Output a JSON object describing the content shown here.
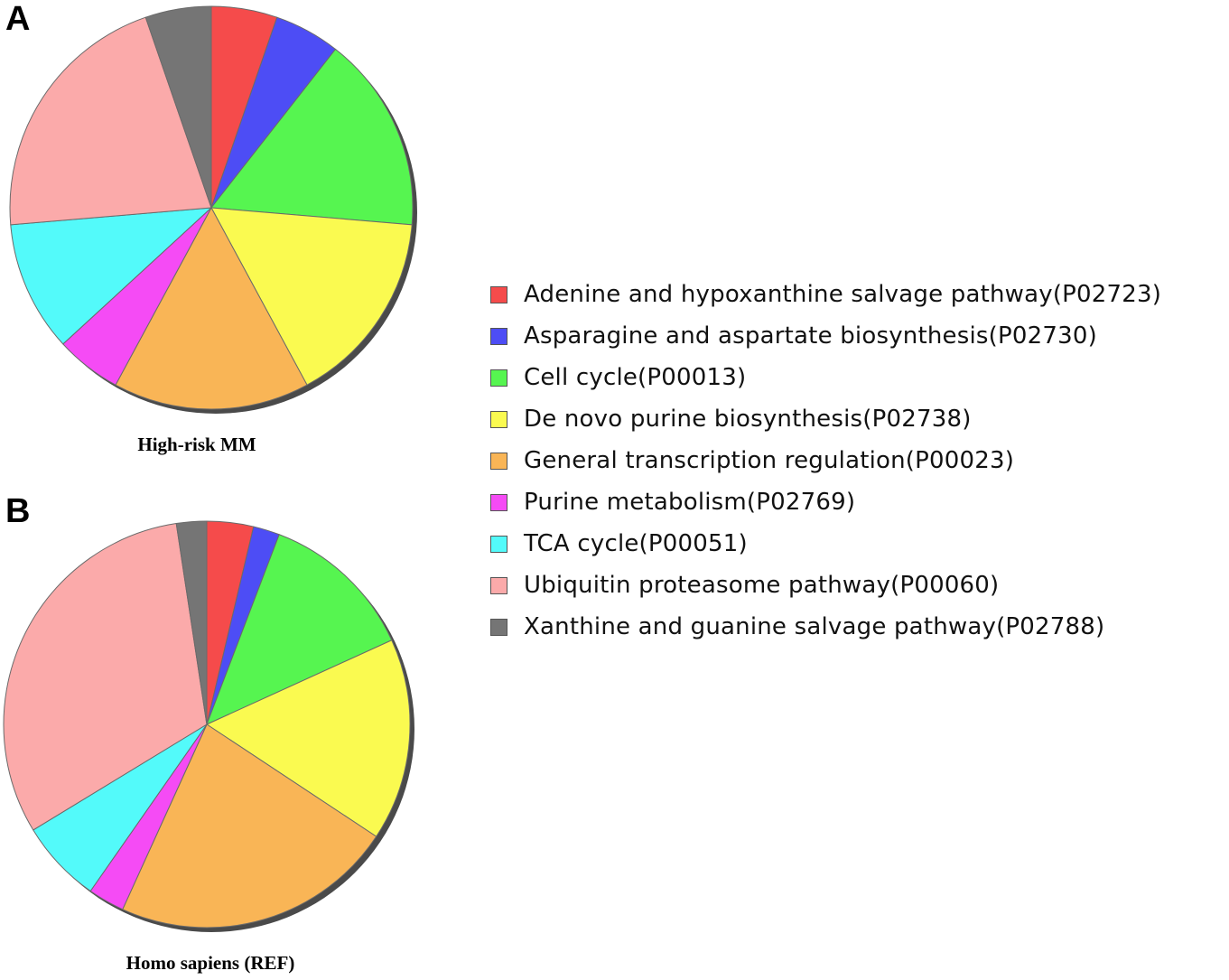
{
  "panels": {
    "a_letter": "A",
    "b_letter": "B"
  },
  "legend": {
    "items": [
      {
        "label": "Adenine and hypoxanthine salvage pathway(P02723)",
        "color": "#f54b4b"
      },
      {
        "label": "Asparagine and aspartate biosynthesis(P02730)",
        "color": "#4d4df5"
      },
      {
        "label": "Cell cycle(P00013)",
        "color": "#56f550"
      },
      {
        "label": "De novo purine biosynthesis(P02738)",
        "color": "#fafa50"
      },
      {
        "label": "General transcription regulation(P00023)",
        "color": "#f9b556"
      },
      {
        "label": "Purine metabolism(P02769)",
        "color": "#f54bf5"
      },
      {
        "label": "TCA cycle(P00051)",
        "color": "#53fafa"
      },
      {
        "label": "Ubiquitin proteasome pathway(P00060)",
        "color": "#fbaaaa"
      },
      {
        "label": "Xanthine and guanine salvage pathway(P02788)",
        "color": "#757575"
      }
    ]
  },
  "chart_data": [
    {
      "type": "pie",
      "caption": "High-risk MM",
      "categories": [
        "Adenine and hypoxanthine salvage pathway(P02723)",
        "Asparagine and aspartate biosynthesis(P02730)",
        "Cell cycle(P00013)",
        "De novo purine biosynthesis(P02738)",
        "General transcription regulation(P00023)",
        "Purine metabolism(P02769)",
        "TCA cycle(P00051)",
        "Ubiquitin proteasome pathway(P00060)",
        "Xanthine and guanine salvage pathway(P02788)"
      ],
      "values": [
        5.3,
        5.3,
        15.8,
        15.8,
        15.8,
        5.3,
        10.5,
        21.1,
        5.3
      ],
      "start_angle_deg": 0,
      "direction": "clockwise",
      "legend_position": "right"
    },
    {
      "type": "pie",
      "caption": "Homo sapiens (REF)",
      "categories": [
        "Adenine and hypoxanthine salvage pathway(P02723)",
        "Asparagine and aspartate biosynthesis(P02730)",
        "Cell cycle(P00013)",
        "De novo purine biosynthesis(P02738)",
        "General transcription regulation(P00023)",
        "Purine metabolism(P02769)",
        "TCA cycle(P00051)",
        "Ubiquitin proteasome pathway(P00060)",
        "Xanthine and guanine salvage pathway(P02788)"
      ],
      "values": [
        3.7,
        2.1,
        12.4,
        16.1,
        22.5,
        2.9,
        6.6,
        31.3,
        2.4
      ],
      "start_angle_deg": 0,
      "direction": "clockwise",
      "legend_position": "right"
    }
  ]
}
